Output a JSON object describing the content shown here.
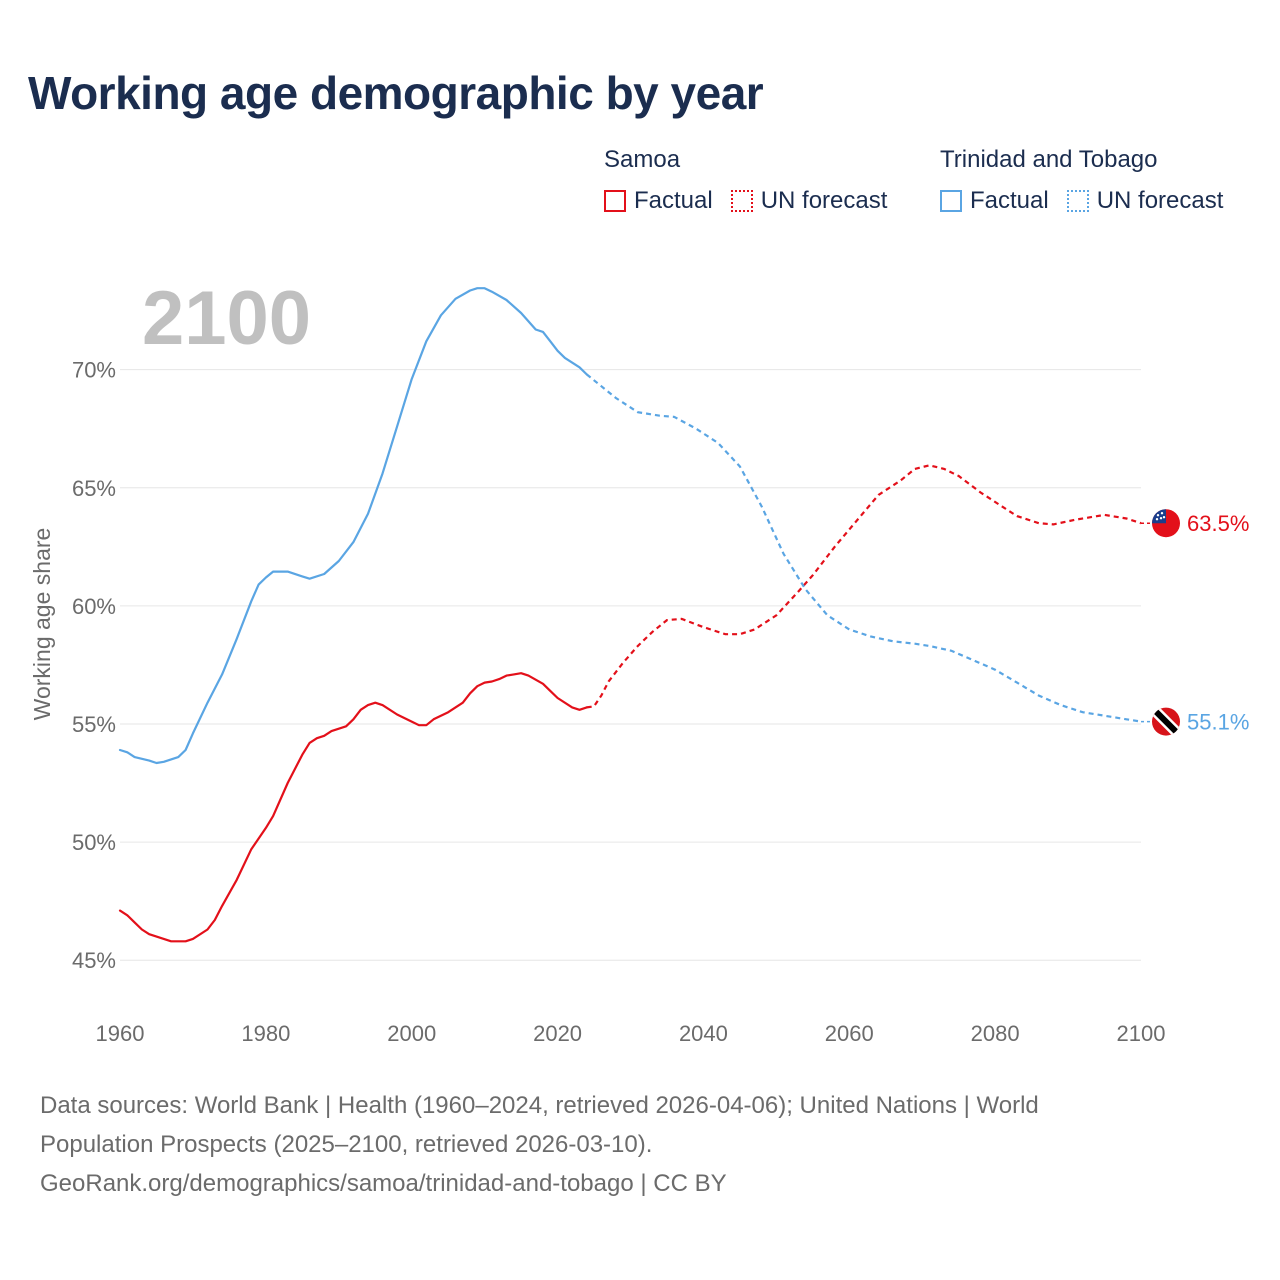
{
  "title": "Working age demographic by year",
  "legend": [
    {
      "country": "Samoa",
      "factual_label": "Factual",
      "forecast_label": "UN forecast",
      "color": "#e3101a"
    },
    {
      "country": "Trinidad and Tobago",
      "factual_label": "Factual",
      "forecast_label": "UN forecast",
      "color": "#5aa5e3"
    }
  ],
  "year_display": "2100",
  "footer": {
    "line1": "Data sources: World Bank | Health (1960–2024, retrieved 2026-04-06); United Nations | World",
    "line2": "Population Prospects (2025–2100, retrieved 2026-03-10).",
    "line3": "GeoRank.org/demographics/samoa/trinidad-and-tobago | CC BY"
  },
  "chart_data": {
    "type": "line",
    "title": "Working age demographic by year",
    "xlabel": "",
    "ylabel": "Working age share",
    "xlim": [
      1960,
      2100
    ],
    "ylim": [
      44.5,
      73.5
    ],
    "x_ticks": [
      1960,
      1980,
      2000,
      2020,
      2040,
      2060,
      2080,
      2100
    ],
    "x_tick_labels": [
      "1960",
      "1980",
      "2000",
      "2020",
      "2040",
      "2060",
      "2080",
      "2100"
    ],
    "y_ticks": [
      45,
      50,
      55,
      60,
      65,
      70
    ],
    "y_tick_labels": [
      "45%",
      "50%",
      "55%",
      "60%",
      "65%",
      "70%"
    ],
    "grid": true,
    "forecast_start": 2024,
    "series": [
      {
        "name": "Samoa",
        "color": "#e3101a",
        "end_label": "63.5%",
        "points": [
          [
            1960,
            47.1
          ],
          [
            1961,
            46.9
          ],
          [
            1962,
            46.6
          ],
          [
            1963,
            46.3
          ],
          [
            1964,
            46.1
          ],
          [
            1965,
            46.0
          ],
          [
            1967,
            45.8
          ],
          [
            1969,
            45.8
          ],
          [
            1970,
            45.9
          ],
          [
            1972,
            46.3
          ],
          [
            1973,
            46.7
          ],
          [
            1974,
            47.3
          ],
          [
            1976,
            48.4
          ],
          [
            1978,
            49.7
          ],
          [
            1980,
            50.6
          ],
          [
            1981,
            51.1
          ],
          [
            1983,
            52.5
          ],
          [
            1985,
            53.7
          ],
          [
            1986,
            54.2
          ],
          [
            1987,
            54.4
          ],
          [
            1988,
            54.5
          ],
          [
            1989,
            54.7
          ],
          [
            1990,
            54.8
          ],
          [
            1991,
            54.9
          ],
          [
            1992,
            55.2
          ],
          [
            1993,
            55.6
          ],
          [
            1994,
            55.8
          ],
          [
            1995,
            55.9
          ],
          [
            1996,
            55.8
          ],
          [
            1998,
            55.4
          ],
          [
            2000,
            55.1
          ],
          [
            2001,
            54.95
          ],
          [
            2002,
            54.95
          ],
          [
            2003,
            55.2
          ],
          [
            2005,
            55.5
          ],
          [
            2007,
            55.9
          ],
          [
            2008,
            56.3
          ],
          [
            2009,
            56.6
          ],
          [
            2010,
            56.75
          ],
          [
            2011,
            56.8
          ],
          [
            2012,
            56.9
          ],
          [
            2013,
            57.05
          ],
          [
            2014,
            57.1
          ],
          [
            2015,
            57.15
          ],
          [
            2016,
            57.05
          ],
          [
            2018,
            56.7
          ],
          [
            2019,
            56.4
          ],
          [
            2020,
            56.1
          ],
          [
            2022,
            55.7
          ],
          [
            2023,
            55.6
          ],
          [
            2024,
            55.7
          ],
          [
            2025,
            55.75
          ],
          [
            2026,
            56.2
          ],
          [
            2027,
            56.8
          ],
          [
            2029,
            57.6
          ],
          [
            2031,
            58.3
          ],
          [
            2033,
            58.9
          ],
          [
            2035,
            59.4
          ],
          [
            2037,
            59.45
          ],
          [
            2040,
            59.1
          ],
          [
            2043,
            58.8
          ],
          [
            2045,
            58.8
          ],
          [
            2047,
            59.0
          ],
          [
            2050,
            59.6
          ],
          [
            2053,
            60.6
          ],
          [
            2055,
            61.3
          ],
          [
            2058,
            62.5
          ],
          [
            2061,
            63.6
          ],
          [
            2064,
            64.7
          ],
          [
            2067,
            65.3
          ],
          [
            2069,
            65.8
          ],
          [
            2071,
            65.95
          ],
          [
            2073,
            65.8
          ],
          [
            2075,
            65.5
          ],
          [
            2078,
            64.8
          ],
          [
            2081,
            64.2
          ],
          [
            2083,
            63.8
          ],
          [
            2086,
            63.5
          ],
          [
            2088,
            63.45
          ],
          [
            2091,
            63.65
          ],
          [
            2095,
            63.85
          ],
          [
            2098,
            63.7
          ],
          [
            2100,
            63.5
          ]
        ]
      },
      {
        "name": "Trinidad and Tobago",
        "color": "#5aa5e3",
        "end_label": "55.1%",
        "points": [
          [
            1960,
            53.9
          ],
          [
            1961,
            53.8
          ],
          [
            1962,
            53.6
          ],
          [
            1964,
            53.45
          ],
          [
            1965,
            53.35
          ],
          [
            1966,
            53.4
          ],
          [
            1968,
            53.6
          ],
          [
            1969,
            53.9
          ],
          [
            1970,
            54.6
          ],
          [
            1972,
            55.9
          ],
          [
            1974,
            57.1
          ],
          [
            1976,
            58.6
          ],
          [
            1978,
            60.2
          ],
          [
            1979,
            60.9
          ],
          [
            1980,
            61.2
          ],
          [
            1981,
            61.45
          ],
          [
            1983,
            61.45
          ],
          [
            1985,
            61.25
          ],
          [
            1986,
            61.15
          ],
          [
            1988,
            61.35
          ],
          [
            1990,
            61.9
          ],
          [
            1992,
            62.7
          ],
          [
            1994,
            63.9
          ],
          [
            1996,
            65.6
          ],
          [
            1998,
            67.6
          ],
          [
            2000,
            69.6
          ],
          [
            2002,
            71.2
          ],
          [
            2004,
            72.3
          ],
          [
            2006,
            73.0
          ],
          [
            2008,
            73.35
          ],
          [
            2009,
            73.45
          ],
          [
            2010,
            73.45
          ],
          [
            2011,
            73.3
          ],
          [
            2013,
            72.95
          ],
          [
            2015,
            72.4
          ],
          [
            2017,
            71.7
          ],
          [
            2018,
            71.6
          ],
          [
            2019,
            71.2
          ],
          [
            2020,
            70.8
          ],
          [
            2021,
            70.5
          ],
          [
            2023,
            70.1
          ],
          [
            2024,
            69.8
          ],
          [
            2026,
            69.3
          ],
          [
            2028,
            68.8
          ],
          [
            2031,
            68.2
          ],
          [
            2034,
            68.05
          ],
          [
            2036,
            68.0
          ],
          [
            2039,
            67.5
          ],
          [
            2042,
            66.9
          ],
          [
            2045,
            65.9
          ],
          [
            2048,
            64.2
          ],
          [
            2051,
            62.2
          ],
          [
            2054,
            60.7
          ],
          [
            2057,
            59.6
          ],
          [
            2060,
            59.0
          ],
          [
            2063,
            58.7
          ],
          [
            2066,
            58.5
          ],
          [
            2069,
            58.4
          ],
          [
            2071,
            58.3
          ],
          [
            2074,
            58.1
          ],
          [
            2077,
            57.7
          ],
          [
            2080,
            57.3
          ],
          [
            2083,
            56.75
          ],
          [
            2086,
            56.2
          ],
          [
            2089,
            55.8
          ],
          [
            2092,
            55.5
          ],
          [
            2096,
            55.3
          ],
          [
            2098,
            55.2
          ],
          [
            2100,
            55.1
          ]
        ]
      }
    ]
  }
}
